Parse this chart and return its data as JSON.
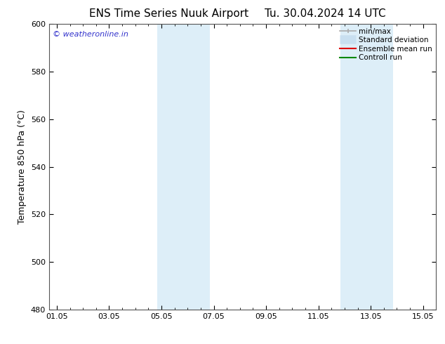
{
  "title_left": "ENS Time Series Nuuk Airport",
  "title_right": "Tu. 30.04.2024 14 UTC",
  "ylabel": "Temperature 850 hPa (°C)",
  "ylim": [
    480,
    600
  ],
  "yticks": [
    480,
    500,
    520,
    540,
    560,
    580,
    600
  ],
  "xticks_labels": [
    "01.05",
    "03.05",
    "05.05",
    "07.05",
    "09.05",
    "11.05",
    "13.05",
    "15.05"
  ],
  "xticks_pos": [
    0,
    2,
    4,
    6,
    8,
    10,
    12,
    14
  ],
  "xlim": [
    -0.3,
    14.3
  ],
  "shaded_bands": [
    {
      "x_start": 3.85,
      "x_end": 5.85,
      "color": "#ddeef8"
    },
    {
      "x_start": 10.85,
      "x_end": 12.85,
      "color": "#ddeef8"
    }
  ],
  "watermark_text": "© weatheronline.in",
  "watermark_color": "#3333cc",
  "watermark_fontsize": 8,
  "background_color": "#ffffff",
  "legend_minmax_color": "#aaaaaa",
  "legend_std_color": "#c8dff0",
  "legend_mean_color": "#dd0000",
  "legend_ctrl_color": "#008800",
  "grid_color": "#dddddd",
  "tick_fontsize": 8,
  "label_fontsize": 9,
  "title_fontsize": 11
}
